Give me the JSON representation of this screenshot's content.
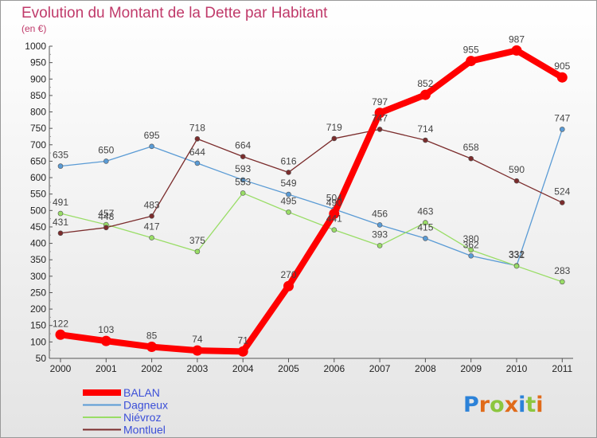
{
  "title": "Evolution du Montant de la Dette par Habitant",
  "unit": "(en €)",
  "logo": {
    "text": "Proxiti",
    "letters": [
      "P",
      "r",
      "o",
      "x",
      "i",
      "t",
      "i"
    ],
    "colors": [
      "#2c82d8",
      "#e06b1a",
      "#8cc63f",
      "#e06b1a",
      "#2c82d8",
      "#8cc63f",
      "#e06b1a"
    ]
  },
  "chart_data": {
    "type": "line",
    "x": [
      "2000",
      "2001",
      "2002",
      "2003",
      "2004",
      "2005",
      "2006",
      "2007",
      "2008",
      "2009",
      "2010",
      "2011"
    ],
    "ylim": [
      50,
      1000
    ],
    "yticks": [
      50,
      100,
      150,
      200,
      250,
      300,
      350,
      400,
      450,
      500,
      550,
      600,
      650,
      700,
      750,
      800,
      850,
      900,
      950,
      1000
    ],
    "grid": false,
    "legend_position": "bottom-left",
    "series": [
      {
        "name": "BALAN",
        "color": "#ff0000",
        "values": [
          122,
          103,
          85,
          74,
          71,
          270,
          490,
          797,
          852,
          955,
          987,
          905
        ]
      },
      {
        "name": "Dagneux",
        "color": "#5a9bd5",
        "values": [
          635,
          650,
          695,
          644,
          593,
          549,
          504,
          456,
          415,
          362,
          332,
          747
        ]
      },
      {
        "name": "Niévroz",
        "color": "#99dd66",
        "values": [
          491,
          457,
          417,
          375,
          553,
          495,
          441,
          393,
          463,
          380,
          331,
          283
        ]
      },
      {
        "name": "Montluel",
        "color": "#7b2c2c",
        "values": [
          431,
          448,
          483,
          718,
          664,
          616,
          719,
          747,
          714,
          658,
          590,
          524
        ]
      }
    ]
  }
}
